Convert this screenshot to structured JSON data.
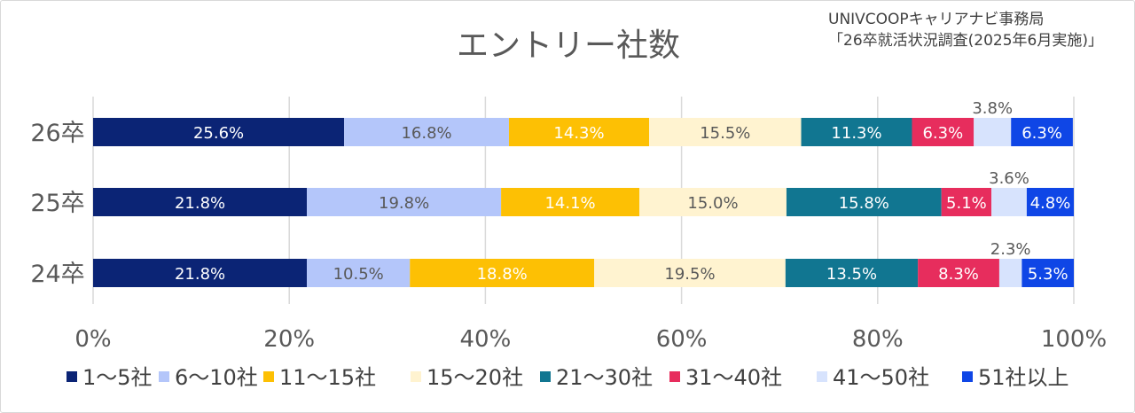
{
  "source": {
    "line1": "UNIVCOOPキャリアナビ事務局",
    "line2": "「26卒就活状況調査(2025年6月実施)」"
  },
  "chart_data": {
    "type": "bar",
    "orientation": "horizontal",
    "stacked": "percent",
    "title": "エントリー社数",
    "categories": [
      "26卒",
      "25卒",
      "24卒"
    ],
    "series": [
      {
        "name": "1～5社",
        "color": "#0b2475",
        "label_color": "#ffffff",
        "values": [
          25.6,
          21.8,
          21.8
        ]
      },
      {
        "name": "6～10社",
        "color": "#b4c6fa",
        "label_color": "#595959",
        "values": [
          16.8,
          19.8,
          10.5
        ]
      },
      {
        "name": "11～15社",
        "color": "#fdc004",
        "label_color": "#ffffff",
        "values": [
          14.3,
          14.1,
          18.8
        ]
      },
      {
        "name": "15～20社",
        "color": "#fff3d0",
        "label_color": "#595959",
        "values": [
          15.5,
          15.0,
          19.5
        ]
      },
      {
        "name": "21～30社",
        "color": "#117691",
        "label_color": "#ffffff",
        "values": [
          11.3,
          15.8,
          13.5
        ]
      },
      {
        "name": "31～40社",
        "color": "#e72d5d",
        "label_color": "#ffffff",
        "values": [
          6.3,
          5.1,
          8.3
        ]
      },
      {
        "name": "41～50社",
        "color": "#d7e3fd",
        "label_color": "#595959",
        "values": [
          3.8,
          3.6,
          2.3
        ],
        "label_position": "above"
      },
      {
        "name": "51社以上",
        "color": "#0f46e6",
        "label_color": "#ffffff",
        "values": [
          6.3,
          4.8,
          5.3
        ]
      }
    ],
    "xlim": [
      0,
      100
    ],
    "xticks": [
      "0%",
      "20%",
      "40%",
      "60%",
      "80%",
      "100%"
    ],
    "grid": "vertical",
    "legend": "bottom"
  }
}
